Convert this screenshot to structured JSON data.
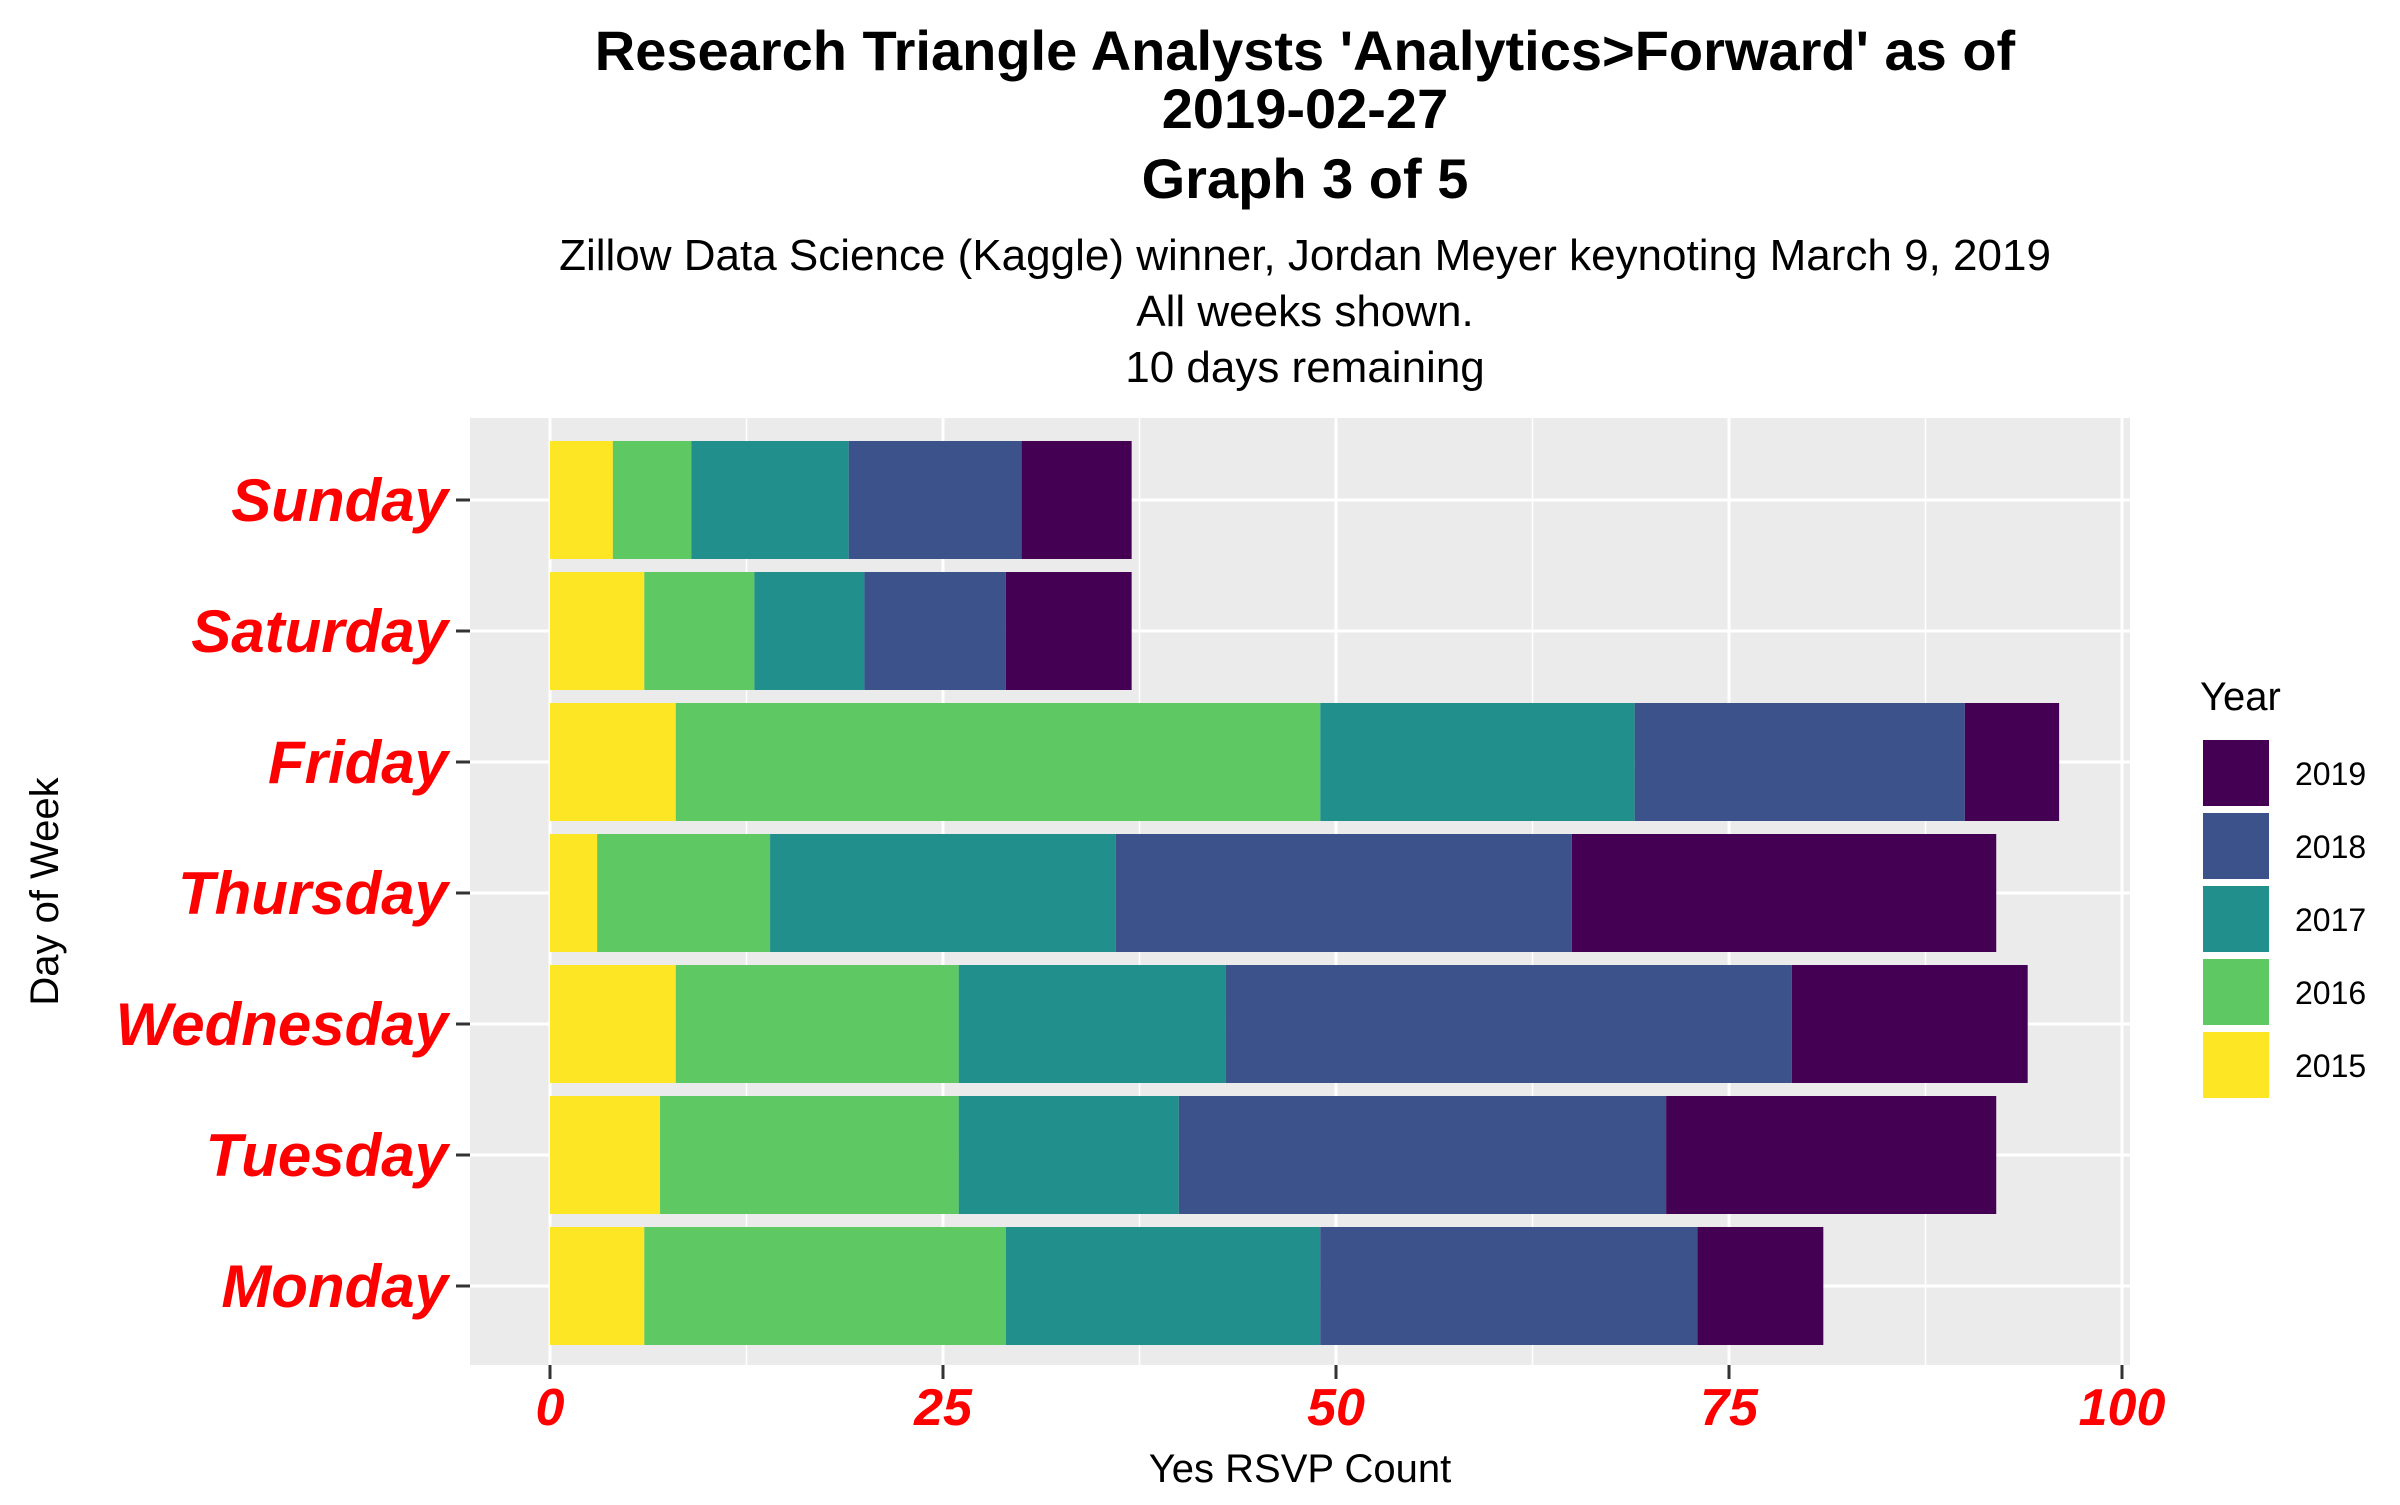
{
  "chart_data": {
    "type": "bar",
    "orientation": "horizontal",
    "stacked": true,
    "title_lines": [
      "Research Triangle Analysts 'Analytics>Forward' as of",
      "2019-02-27",
      "Graph 3 of 5"
    ],
    "subtitle_lines": [
      "Zillow Data Science (Kaggle) winner, Jordan Meyer keynoting March 9, 2019",
      "All weeks shown.",
      "10 days remaining"
    ],
    "xlabel": "Yes RSVP Count",
    "ylabel": "Day of Week",
    "xlim": [
      0,
      100
    ],
    "x_ticks": [
      0,
      25,
      50,
      75,
      100
    ],
    "categories": [
      "Monday",
      "Tuesday",
      "Wednesday",
      "Thursday",
      "Friday",
      "Saturday",
      "Sunday"
    ],
    "legend_title": "Year",
    "legend_position": "right",
    "grid": true,
    "series": [
      {
        "name": "2015",
        "color": "#FDE725",
        "values": [
          6,
          7,
          8,
          3,
          8,
          6,
          4
        ]
      },
      {
        "name": "2016",
        "color": "#5EC962",
        "values": [
          23,
          19,
          18,
          11,
          41,
          7,
          5
        ]
      },
      {
        "name": "2017",
        "color": "#21908C",
        "values": [
          20,
          14,
          17,
          22,
          20,
          7,
          10
        ]
      },
      {
        "name": "2018",
        "color": "#3B528B",
        "values": [
          24,
          31,
          36,
          29,
          21,
          9,
          11
        ]
      },
      {
        "name": "2019",
        "color": "#440154",
        "values": [
          8,
          21,
          15,
          27,
          6,
          8,
          7
        ]
      }
    ],
    "legend_order": [
      "2019",
      "2018",
      "2017",
      "2016",
      "2015"
    ]
  }
}
